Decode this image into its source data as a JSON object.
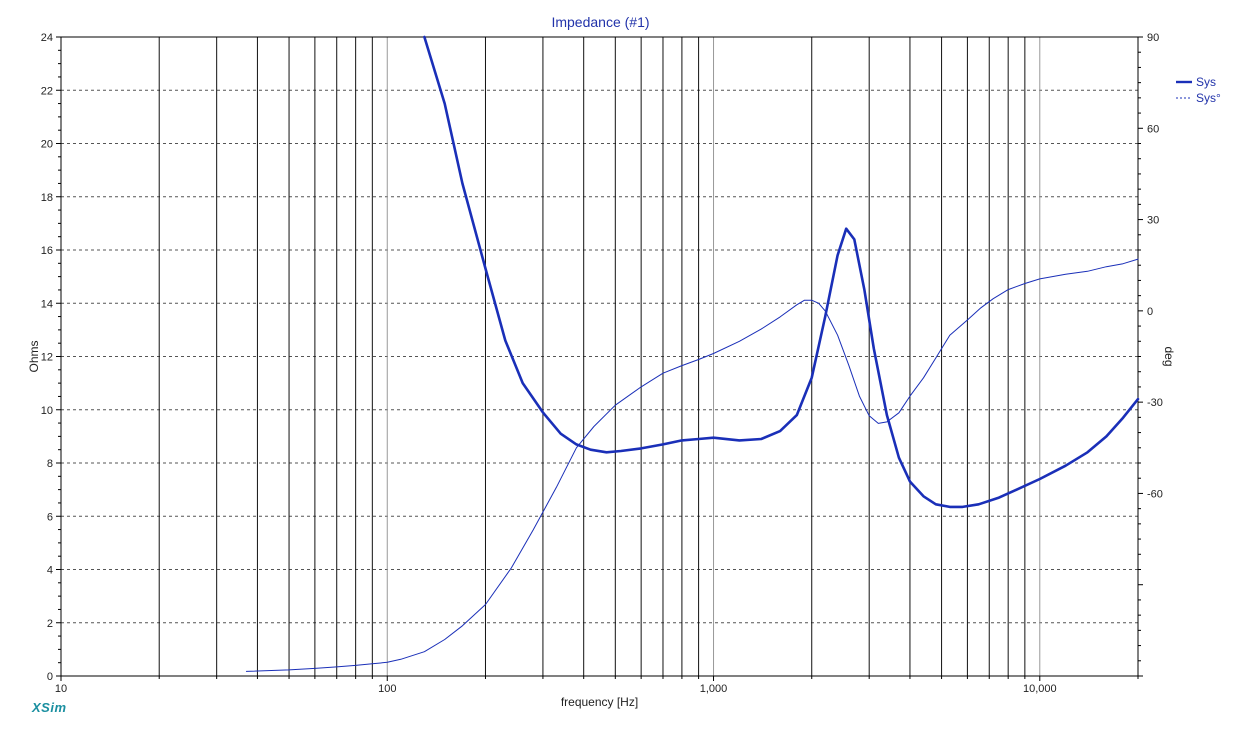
{
  "chart_data": {
    "type": "line",
    "title": "Impedance (#1)",
    "xlabel": "frequency [Hz]",
    "ylabel": "Ohms",
    "y2label": "deg",
    "x_scale": "log",
    "xlim": [
      10,
      20000
    ],
    "ylim": [
      0,
      24
    ],
    "y2lim": [
      -120,
      90
    ],
    "x_ticks": [
      10,
      100,
      1000,
      10000
    ],
    "x_tick_labels": [
      "10",
      "100",
      "1,000",
      "10,000"
    ],
    "y_ticks": [
      0,
      2,
      4,
      6,
      8,
      10,
      12,
      14,
      16,
      18,
      20,
      22,
      24
    ],
    "y2_ticks": [
      90,
      60,
      30,
      0,
      -30,
      -60
    ],
    "y2_tick_labels": [
      "90",
      "60",
      "30",
      "0",
      "-30",
      "-60"
    ],
    "grid": true,
    "legend_position": "top-right",
    "series": [
      {
        "name": "Sys",
        "axis": "left",
        "style": "solid-bold",
        "color": "#1a2fb8",
        "x": [
          130,
          150,
          170,
          200,
          230,
          260,
          300,
          340,
          380,
          420,
          470,
          520,
          600,
          700,
          800,
          900,
          1000,
          1200,
          1400,
          1600,
          1800,
          2000,
          2200,
          2400,
          2550,
          2700,
          2900,
          3100,
          3400,
          3700,
          4000,
          4400,
          4800,
          5300,
          5800,
          6500,
          7500,
          8500,
          10000,
          12000,
          14000,
          16000,
          18000,
          20000
        ],
        "y": [
          24,
          21.5,
          18.5,
          15.3,
          12.6,
          11,
          9.9,
          9.1,
          8.7,
          8.5,
          8.4,
          8.45,
          8.55,
          8.7,
          8.85,
          8.9,
          8.95,
          8.85,
          8.9,
          9.2,
          9.8,
          11.2,
          13.5,
          15.8,
          16.8,
          16.4,
          14.5,
          12.3,
          9.8,
          8.2,
          7.3,
          6.75,
          6.45,
          6.35,
          6.35,
          6.45,
          6.7,
          7.0,
          7.4,
          7.9,
          8.4,
          9.0,
          9.7,
          10.4
        ]
      },
      {
        "name": "Sys°",
        "axis": "right",
        "style": "thin",
        "color": "#1a2fb8",
        "x": [
          37,
          50,
          60,
          70,
          80,
          90,
          100,
          110,
          130,
          150,
          170,
          200,
          240,
          280,
          330,
          380,
          430,
          500,
          600,
          700,
          800,
          900,
          1000,
          1200,
          1400,
          1600,
          1800,
          1900,
          2000,
          2100,
          2200,
          2400,
          2600,
          2800,
          3000,
          3200,
          3400,
          3700,
          4000,
          4400,
          4800,
          5300,
          6000,
          6600,
          7200,
          8000,
          9000,
          10000,
          12000,
          14000,
          16000,
          18000,
          20000
        ],
        "y": [
          -118.5,
          -118,
          -117.5,
          -117,
          -116.5,
          -116,
          -115.5,
          -114.5,
          -112,
          -108,
          -103.5,
          -96.5,
          -84.5,
          -72,
          -58,
          -45,
          -38,
          -31,
          -25,
          -20.5,
          -18,
          -16,
          -14,
          -10,
          -6,
          -2,
          2,
          3.5,
          3.5,
          2.5,
          0,
          -8,
          -18,
          -28,
          -34.5,
          -37,
          -36.5,
          -33.5,
          -28,
          -22,
          -15.5,
          -8,
          -3,
          1,
          4,
          7,
          9,
          10.5,
          12,
          13,
          14.5,
          15.5,
          17
        ]
      }
    ]
  },
  "brand_label": "XSim"
}
